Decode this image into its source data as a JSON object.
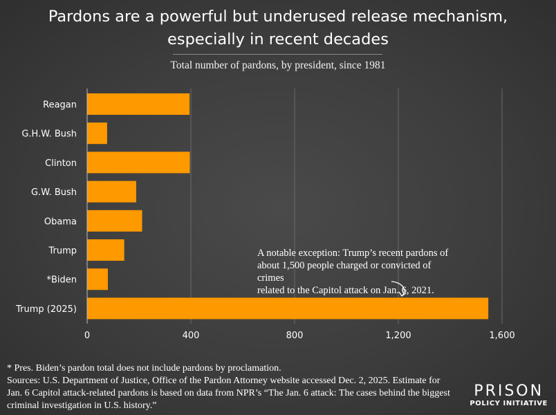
{
  "chart_data": {
    "type": "bar",
    "orientation": "horizontal",
    "title": "Pardons are a powerful but underused release mechanism, especially in recent decades",
    "subtitle": "Total number of pardons, by president, since 1981",
    "categories": [
      "Reagan",
      "G.H.W. Bush",
      "Clinton",
      "G.W. Bush",
      "Obama",
      "Trump",
      "*Biden",
      "Trump (2025)"
    ],
    "values": [
      395,
      77,
      396,
      189,
      212,
      143,
      80,
      1547
    ],
    "xlabel": "",
    "ylabel": "",
    "xlim": [
      0,
      1600
    ],
    "xticks": [
      0,
      400,
      800,
      1200,
      1600
    ],
    "xtick_labels": [
      "0",
      "400",
      "800",
      "1,200",
      "1,600"
    ],
    "grid": "vertical",
    "bar_color": "#FF9900",
    "annotation": {
      "text": "A notable exception: Trump’s recent pardons of about 1,500 people charged or convicted of crimes related to the Capitol attack on Jan. 6, 2021.",
      "target": "Trump (2025)"
    }
  },
  "header": {
    "title_line1": "Pardons are a powerful but underused release mechanism,",
    "title_line2": "especially in recent decades",
    "subtitle": "Total number of pardons, by president, since 1981"
  },
  "annotation": {
    "line1": "A notable exception: Trump’s recent pardons of",
    "line2": "about 1,500 people charged or convicted of crimes",
    "line3": "related to the Capitol attack on Jan. 6, 2021."
  },
  "footer": {
    "note": "* Pres. Biden’s pardon total does not include pardons by proclamation.",
    "sources_line1": "Sources: U.S. Department of Justice, Office of the Pardon Attorney website accessed Dec. 2, 2025. Estimate for",
    "sources_line2": "Jan. 6 Capitol attack-related pardons is based on data from NPR’s “The Jan. 6 attack: The cases behind the biggest",
    "sources_line3": "criminal investigation in U.S. history.”"
  },
  "logo": {
    "line1": "PRISON",
    "line2": "POLICY INITIATIVE"
  }
}
